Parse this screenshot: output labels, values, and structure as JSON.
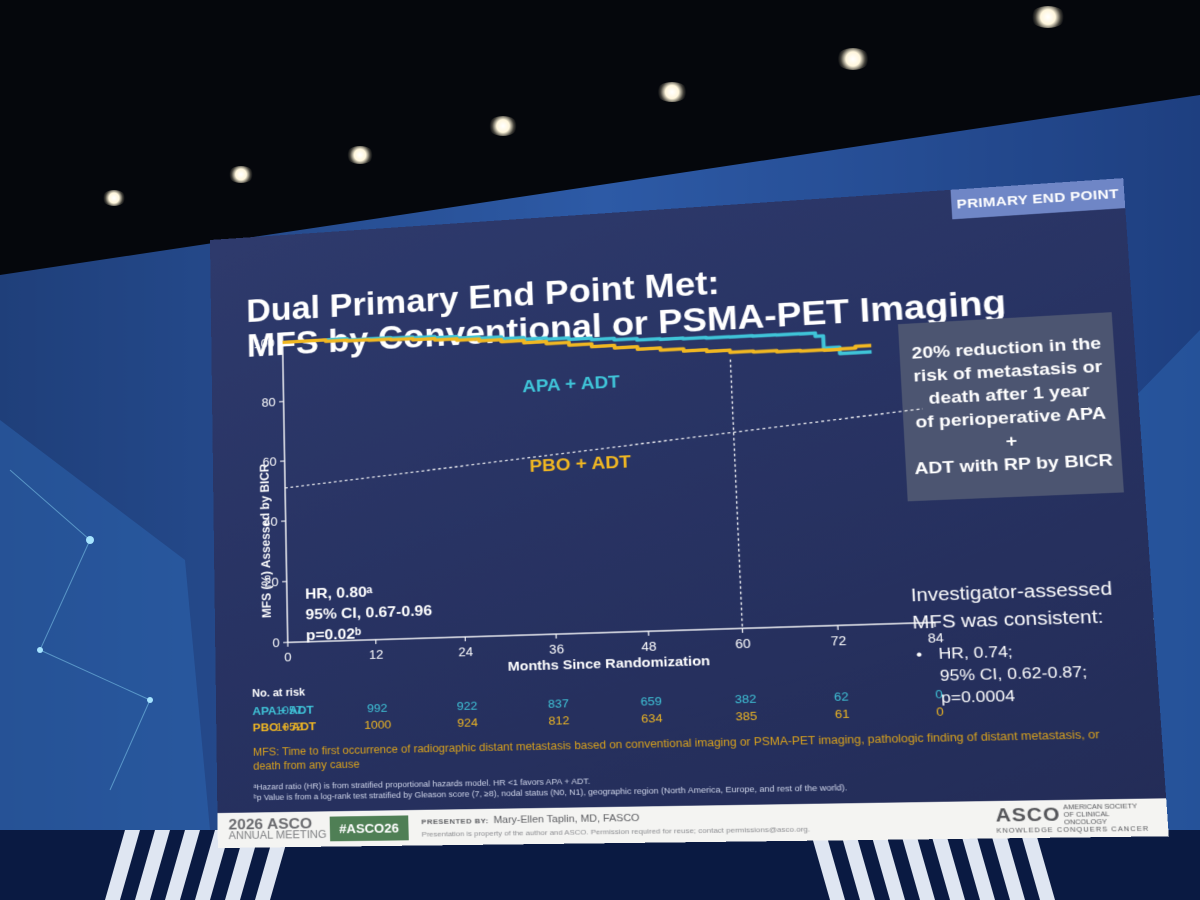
{
  "slide": {
    "badge": "PRIMARY END POINT",
    "title_lines": [
      "Dual Primary End Point Met:",
      "MFS by Conventional or PSMA-PET Imaging"
    ],
    "callout_lines": [
      "20% reduction in the",
      "risk of metastasis or",
      "death after 1 year",
      "of perioperative APA +",
      "ADT with RP by BICR"
    ],
    "hr_lines": [
      "HR, 0.80ᵃ",
      "95% CI, 0.67-0.96",
      "p=0.02ᵇ"
    ],
    "investigator": {
      "heading_lines": [
        "Investigator-assessed",
        "MFS was consistent:"
      ],
      "bullet": "•",
      "lines": [
        "HR, 0.74;",
        "95% CI, 0.62-0.87;",
        "p=0.0004"
      ]
    },
    "footnote": "MFS: Time to first occurrence of radiographic distant metastasis based on conventional imaging or PSMA-PET imaging, pathologic finding of distant metastasis, or death from any cause",
    "footnote_small_lines": [
      "ᵃHazard ratio (HR) is from stratified proportional hazards model. HR <1 favors APA + ADT.",
      "ᵇp Value is from a log-rank test stratified by Gleason score (7, ≥8), nodal status (N0, N1), geographic region (North America, Europe, and rest of the world)."
    ],
    "footer": {
      "meeting_year": "2026 ASCO",
      "meeting_name": "ANNUAL MEETING",
      "hashtag": "#ASCO26",
      "presented_by": "PRESENTED BY:",
      "presenter": "Mary-Ellen Taplin, MD, FASCO",
      "disclaimer": "Presentation is property of the author and ASCO. Permission required for reuse; contact permissions@asco.org.",
      "asco_logo": "ASCO",
      "asco_org": "AMERICAN SOCIETY OF CLINICAL ONCOLOGY",
      "asco_tagline": "KNOWLEDGE CONQUERS CANCER"
    },
    "colors": {
      "apa": "#3fc4d8",
      "pbo": "#f0b722",
      "background": "#283363",
      "callout": "#4c5571",
      "badge": "#6f86c6"
    }
  },
  "chart_data": {
    "type": "line",
    "xlabel": "Months Since Randomization",
    "ylabel": "MFS (%) Assessed by BICR",
    "xlim": [
      0,
      84
    ],
    "ylim": [
      0,
      100
    ],
    "xticks": [
      0,
      12,
      24,
      36,
      48,
      60,
      72,
      84
    ],
    "yticks": [
      0,
      20,
      40,
      60,
      80,
      100
    ],
    "series": [
      {
        "name": "APA + ADT",
        "color": "#3fc4d8",
        "x": [
          0,
          3,
          6,
          9,
          12,
          15,
          18,
          21,
          24,
          27,
          30,
          33,
          36,
          39,
          42,
          45,
          48,
          51,
          54,
          57,
          60,
          63,
          66,
          69,
          71,
          72,
          74,
          76,
          78
        ],
        "y": [
          100,
          100,
          100,
          99.5,
          99.5,
          99.3,
          99,
          98.6,
          98,
          97.6,
          97,
          96.4,
          96,
          95.5,
          95,
          94.5,
          94,
          93.8,
          93.6,
          93.4,
          93.3,
          93.2,
          93.1,
          93,
          92,
          88,
          86,
          86,
          86
        ]
      },
      {
        "name": "PBO + ADT",
        "color": "#f0b722",
        "x": [
          0,
          3,
          6,
          9,
          12,
          15,
          18,
          21,
          24,
          27,
          30,
          33,
          36,
          39,
          42,
          45,
          48,
          51,
          54,
          57,
          60,
          63,
          66,
          69,
          72,
          74,
          76,
          78
        ],
        "y": [
          100,
          100,
          99.5,
          99.2,
          99,
          98.7,
          98.3,
          97.8,
          97.3,
          96.7,
          96,
          95.2,
          94.5,
          93.6,
          92.7,
          91.8,
          91,
          90.3,
          89.6,
          89,
          88.3,
          88,
          87.7,
          87.5,
          87.3,
          87.5,
          88,
          88
        ]
      }
    ],
    "reference_line": {
      "x": [
        0,
        84
      ],
      "y": [
        51,
        67
      ]
    },
    "median_marker_x": 60,
    "series_labels": {
      "apa": "APA + ADT",
      "pbo": "PBO + ADT"
    },
    "risk_table": {
      "heading": "No. at risk",
      "rows": [
        {
          "label": "APA + ADT",
          "color": "#3fc4d8",
          "values": [
            "1057",
            "992",
            "922",
            "837",
            "659",
            "382",
            "62",
            "0"
          ]
        },
        {
          "label": "PBO + ADT",
          "color": "#f0b722",
          "values": [
            "1052",
            "1000",
            "924",
            "812",
            "634",
            "385",
            "61",
            "0"
          ]
        }
      ]
    }
  }
}
